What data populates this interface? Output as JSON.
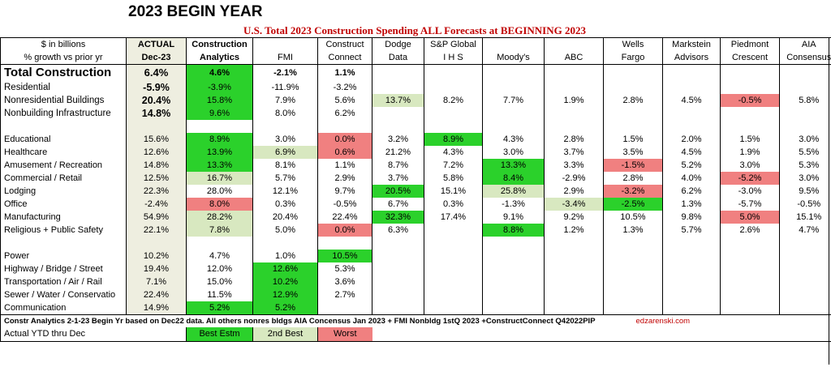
{
  "title": "2023 BEGIN YEAR",
  "subtitle": "U.S. Total 2023 Construction Spending ALL Forecasts at BEGINNING 2023",
  "header_row1": [
    "$ in billions",
    "ACTUAL",
    "Construction",
    "",
    "Construct",
    "Dodge",
    "S&P Global",
    "",
    "",
    "Wells",
    "Markstein",
    "Piedmont",
    "AIA"
  ],
  "header_row2": [
    "% growth vs prior yr",
    "Dec-23",
    "Analytics",
    "FMI",
    "Connect",
    "Data",
    "I H S",
    "Moody's",
    "ABC",
    "Fargo",
    "Advisors",
    "Crescent",
    "Consensus"
  ],
  "rows": [
    {
      "label": "Total Construction",
      "cells": [
        "6.4%",
        "4.6%",
        "-2.1%",
        "1.1%",
        "",
        "",
        "",
        "",
        "",
        "",
        "",
        ""
      ]
    },
    {
      "label": "Residential",
      "cells": [
        "-5.9%",
        "-3.9%",
        "-11.9%",
        "-3.2%",
        "",
        "",
        "",
        "",
        "",
        "",
        "",
        ""
      ]
    },
    {
      "label": "Nonresidential Buildings",
      "cells": [
        "20.4%",
        "15.8%",
        "7.9%",
        "5.6%",
        "13.7%",
        "8.2%",
        "7.7%",
        "1.9%",
        "2.8%",
        "4.5%",
        "-0.5%",
        "5.8%"
      ]
    },
    {
      "label": "Nonbuilding Infrastructure",
      "cells": [
        "14.8%",
        "9.6%",
        "8.0%",
        "6.2%",
        "",
        "",
        "",
        "",
        "",
        "",
        "",
        ""
      ]
    },
    {
      "label": "Educational",
      "cells": [
        "15.6%",
        "8.9%",
        "3.0%",
        "0.0%",
        "3.2%",
        "8.9%",
        "4.3%",
        "2.8%",
        "1.5%",
        "2.0%",
        "1.5%",
        "3.0%"
      ]
    },
    {
      "label": "Healthcare",
      "cells": [
        "12.6%",
        "13.9%",
        "6.9%",
        "0.6%",
        "21.2%",
        "4.3%",
        "3.0%",
        "3.7%",
        "3.5%",
        "4.5%",
        "1.9%",
        "5.5%"
      ]
    },
    {
      "label": "Amusement / Recreation",
      "cells": [
        "14.8%",
        "13.3%",
        "8.1%",
        "1.1%",
        "8.7%",
        "7.2%",
        "13.3%",
        "3.3%",
        "-1.5%",
        "5.2%",
        "3.0%",
        "5.3%"
      ]
    },
    {
      "label": "Commercial / Retail",
      "cells": [
        "12.5%",
        "16.7%",
        "5.7%",
        "2.9%",
        "3.7%",
        "5.8%",
        "8.4%",
        "-2.9%",
        "2.8%",
        "4.0%",
        "-5.2%",
        "3.0%"
      ]
    },
    {
      "label": "Lodging",
      "cells": [
        "22.3%",
        "28.0%",
        "12.1%",
        "9.7%",
        "20.5%",
        "15.1%",
        "25.8%",
        "2.9%",
        "-3.2%",
        "6.2%",
        "-3.0%",
        "9.5%"
      ]
    },
    {
      "label": "Office",
      "cells": [
        "-2.4%",
        "8.0%",
        "0.3%",
        "-0.5%",
        "6.7%",
        "0.3%",
        "-1.3%",
        "-3.4%",
        "-2.5%",
        "1.3%",
        "-5.7%",
        "-0.5%"
      ]
    },
    {
      "label": "Manufacturing",
      "cells": [
        "54.9%",
        "28.2%",
        "20.4%",
        "22.4%",
        "32.3%",
        "17.4%",
        "9.1%",
        "9.2%",
        "10.5%",
        "9.8%",
        "5.0%",
        "15.1%"
      ]
    },
    {
      "label": "Religious + Public Safety",
      "cells": [
        "22.1%",
        "7.8%",
        "5.0%",
        "0.0%",
        "6.3%",
        "",
        "8.8%",
        "1.2%",
        "1.3%",
        "5.7%",
        "2.6%",
        "4.7%"
      ]
    },
    {
      "label": "Power",
      "cells": [
        "10.2%",
        "4.7%",
        "1.0%",
        "10.5%",
        "",
        "",
        "",
        "",
        "",
        "",
        "",
        ""
      ]
    },
    {
      "label": "Highway / Bridge / Street",
      "cells": [
        "19.4%",
        "12.0%",
        "12.6%",
        "5.3%",
        "",
        "",
        "",
        "",
        "",
        "",
        "",
        ""
      ]
    },
    {
      "label": "Transportation / Air / Rail",
      "cells": [
        "7.1%",
        "15.0%",
        "10.2%",
        "3.6%",
        "",
        "",
        "",
        "",
        "",
        "",
        "",
        ""
      ]
    },
    {
      "label": "Sewer / Water / Conservatio",
      "cells": [
        "22.4%",
        "11.5%",
        "12.9%",
        "2.7%",
        "",
        "",
        "",
        "",
        "",
        "",
        "",
        ""
      ]
    },
    {
      "label": "Communication",
      "cells": [
        "14.9%",
        "5.2%",
        "5.2%",
        "",
        "",
        "",
        "",
        "",
        "",
        "",
        "",
        ""
      ]
    }
  ],
  "footnote": "Constr Analytics 2-1-23 Begin Yr based on Dec22 data. All others nonres bldgs AIA Concensus Jan 2023 + FMI Nonbldg 1stQ 2023 +ConstructConnect Q42022PIP",
  "website": "edzarenski.com",
  "legend": {
    "row_label": "Actual YTD thru Dec",
    "best": "Best Estm",
    "second": "2nd Best",
    "worst": "Worst"
  },
  "colors": {
    "best": "#2bd12b",
    "second": "#d8e8c0",
    "worst": "#f08080",
    "actual_bg": "#eeeee0",
    "subtitle": "#c00000"
  }
}
